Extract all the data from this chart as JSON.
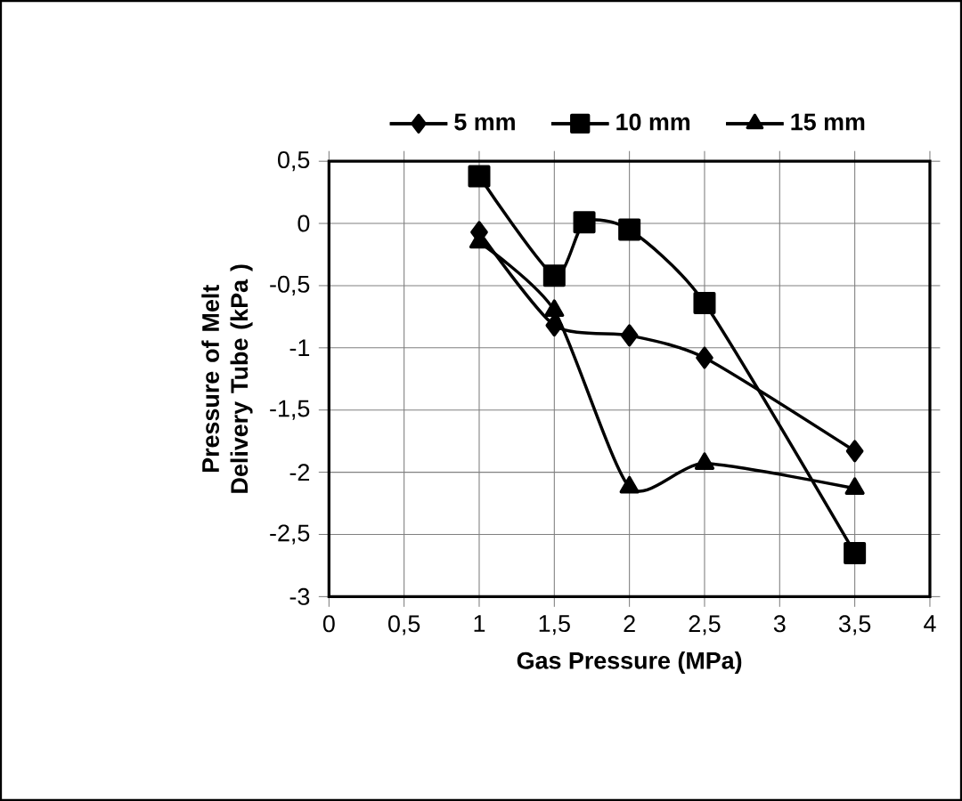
{
  "chart_data": {
    "type": "line",
    "xlabel": "Gas Pressure (MPa)",
    "ylabel": "Pressure of Melt Delivery Tube (kPa )",
    "xlim": [
      0,
      4
    ],
    "xticks": [
      0,
      {
        "value": 0.5,
        "label": "0,5"
      },
      1,
      {
        "value": 1.5,
        "label": "1,5"
      },
      2,
      {
        "value": 2.5,
        "label": "2,5"
      },
      3,
      {
        "value": 3.5,
        "label": "3,5"
      },
      4
    ],
    "ylim": [
      -3,
      0.5
    ],
    "yticks": [
      -3,
      {
        "value": -2.5,
        "label": "-2,5"
      },
      -2,
      {
        "value": -1.5,
        "label": "-1,5"
      },
      -1,
      {
        "value": -0.5,
        "label": "-0,5"
      },
      0,
      {
        "value": 0.5,
        "label": "0,5"
      }
    ],
    "grid": true,
    "legend": "top",
    "series": [
      {
        "name": "5 mm",
        "color": "#000000",
        "marker": "diamond",
        "x": [
          1,
          1.5,
          2,
          2.5,
          3.5
        ],
        "values": [
          -0.07,
          -0.82,
          -0.9,
          -1.08,
          -1.83
        ]
      },
      {
        "name": "10 mm",
        "color": "#000000",
        "marker": "square",
        "x": [
          1,
          1.5,
          1.7,
          2,
          2.5,
          3.5
        ],
        "values": [
          0.38,
          -0.42,
          0.01,
          -0.05,
          -0.64,
          -2.65
        ]
      },
      {
        "name": "15 mm",
        "color": "#000000",
        "marker": "triangle",
        "x": [
          1,
          1.5,
          2,
          2.5,
          3.5
        ],
        "values": [
          -0.15,
          -0.7,
          -2.12,
          -1.93,
          -2.13
        ]
      }
    ]
  }
}
